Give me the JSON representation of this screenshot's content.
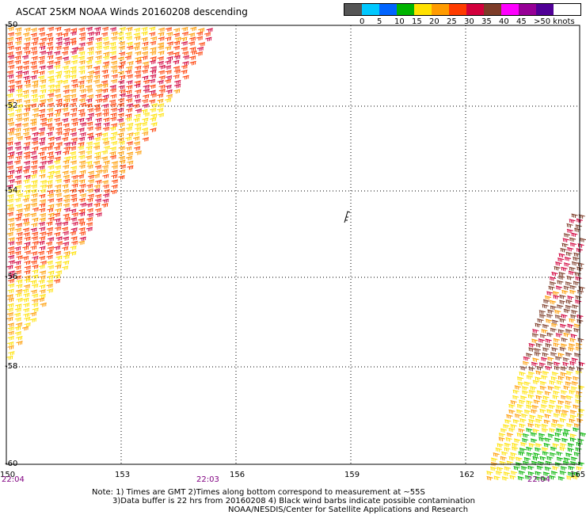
{
  "title": "ASCAT 25KM NOAA Winds 20160208 descending",
  "legend": {
    "colors": [
      "#555555",
      "#00c8ff",
      "#0064ff",
      "#00b400",
      "#ffe100",
      "#ff9b00",
      "#ff3c00",
      "#d2003c",
      "#7d3c28",
      "#ff00ff",
      "#960096",
      "#500096"
    ],
    "labels": [
      "0",
      "5",
      "10",
      "15",
      "20",
      "25",
      "30",
      "35",
      "40",
      "45",
      ">50 knots"
    ]
  },
  "latitude_labels": [
    "-50",
    "-52",
    "-54",
    "-56",
    "-58",
    "-60"
  ],
  "longitude_labels": [
    "150",
    "153",
    "156",
    "159",
    "162",
    "165"
  ],
  "time_labels": [
    "22:04",
    "22:03",
    "22:04"
  ],
  "notes": [
    "Note: 1) Times are GMT 2)Times along bottom correspond to measurement at ~55S",
    "3)Data buffer is 22 hrs from 20160208 4) Black wind barbs indicate possible contamination",
    "NOAA/NESDIS/Center for Satellite Applications and Research"
  ],
  "swaths": [
    {
      "name": "west-swath",
      "dominant_colors": [
        "#ffe100",
        "#ff9b00",
        "#ff3c00",
        "#d2003c"
      ]
    },
    {
      "name": "east-swath",
      "dominant_colors": [
        "#7d3c28",
        "#d2003c",
        "#ff9b00",
        "#ffe100",
        "#00b400"
      ]
    }
  ]
}
